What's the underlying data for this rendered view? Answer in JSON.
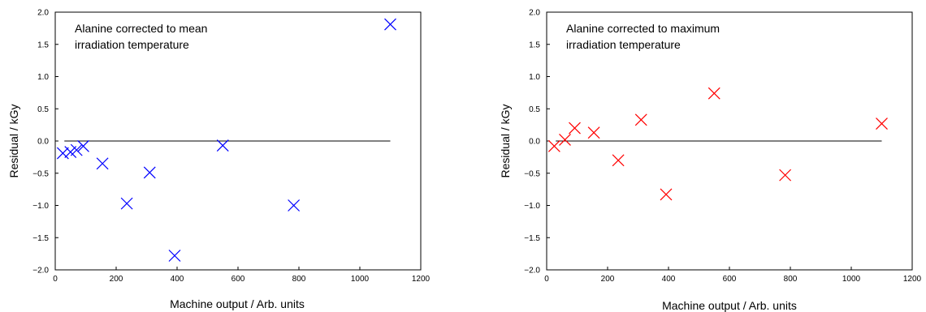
{
  "chart_data": [
    {
      "type": "scatter",
      "title": "",
      "annotation": [
        "Alanine corrected to mean",
        "irradiation temperature"
      ],
      "xlabel": "Machine output / Arb. units",
      "ylabel": "Residual / kGy",
      "xlim": [
        0,
        1200
      ],
      "ylim": [
        -2.0,
        2.0
      ],
      "xticks": [
        "0",
        "200",
        "400",
        "600",
        "800",
        "1000",
        "1200"
      ],
      "yticks": [
        "−2.0",
        "−1.5",
        "−1.0",
        "−0.5",
        "0.0",
        "0.5",
        "1.0",
        "1.5",
        "2.0"
      ],
      "grid": false,
      "reference_line": {
        "y": 0.0,
        "x_from": 30,
        "x_to": 1100
      },
      "marker": "x",
      "series": [
        {
          "color": "#0000ff",
          "points": [
            {
              "x": 25,
              "y": -0.19
            },
            {
              "x": 50,
              "y": -0.17
            },
            {
              "x": 70,
              "y": -0.14
            },
            {
              "x": 92,
              "y": -0.08
            },
            {
              "x": 155,
              "y": -0.35
            },
            {
              "x": 235,
              "y": -0.97
            },
            {
              "x": 310,
              "y": -0.49
            },
            {
              "x": 392,
              "y": -1.78
            },
            {
              "x": 550,
              "y": -0.07
            },
            {
              "x": 783,
              "y": -1.0
            },
            {
              "x": 1100,
              "y": 1.81
            }
          ]
        }
      ]
    },
    {
      "type": "scatter",
      "title": "",
      "annotation": [
        "Alanine corrected to maximum",
        "irradiation temperature"
      ],
      "xlabel": "Machine output / Arb. units",
      "ylabel": "Residual / kGy",
      "xlim": [
        0,
        1200
      ],
      "ylim": [
        -2.0,
        2.0
      ],
      "xticks": [
        "0",
        "200",
        "400",
        "600",
        "800",
        "1000",
        "1200"
      ],
      "yticks": [
        "−2.0",
        "−1.5",
        "−1.0",
        "−0.5",
        "0.0",
        "0.5",
        "1.0",
        "1.5",
        "2.0"
      ],
      "grid": false,
      "reference_line": {
        "y": 0.0,
        "x_from": 30,
        "x_to": 1100
      },
      "marker": "x",
      "series": [
        {
          "color": "#ff0000",
          "points": [
            {
              "x": 25,
              "y": -0.08
            },
            {
              "x": 60,
              "y": 0.02
            },
            {
              "x": 92,
              "y": 0.2
            },
            {
              "x": 155,
              "y": 0.13
            },
            {
              "x": 235,
              "y": -0.3
            },
            {
              "x": 310,
              "y": 0.33
            },
            {
              "x": 392,
              "y": -0.83
            },
            {
              "x": 550,
              "y": 0.74
            },
            {
              "x": 783,
              "y": -0.53
            },
            {
              "x": 1100,
              "y": 0.27
            }
          ]
        }
      ]
    }
  ]
}
